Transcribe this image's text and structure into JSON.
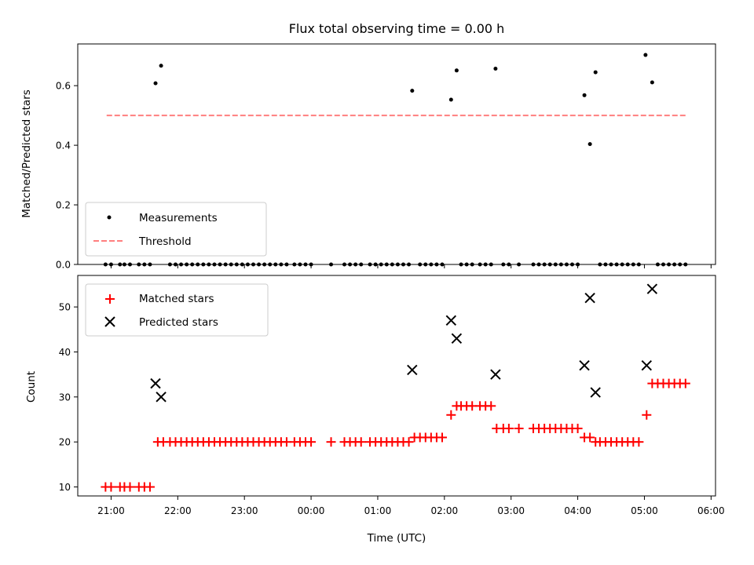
{
  "chart_data": [
    {
      "type": "scatter",
      "title": "Flux total observing time = 0.00 h",
      "xlabel": "",
      "ylabel": "Matched/Predicted stars",
      "xlim": [
        "20:30",
        "06:04"
      ],
      "ylim": [
        0,
        0.74
      ],
      "x_ticks": [
        "21:00",
        "22:00",
        "23:00",
        "00:00",
        "01:00",
        "02:00",
        "03:00",
        "04:00",
        "05:00",
        "06:00"
      ],
      "y_ticks": [
        "0.0",
        "0.2",
        "0.4",
        "0.6"
      ],
      "legend": {
        "position": "lower-left",
        "entries": [
          "Measurements",
          "Threshold"
        ]
      },
      "series": [
        {
          "name": "Measurements",
          "marker": "dot",
          "color": "#000000",
          "points": [
            {
              "x": "20:55",
              "y": 0
            },
            {
              "x": "21:00",
              "y": 0
            },
            {
              "x": "21:08",
              "y": 0
            },
            {
              "x": "21:12",
              "y": 0
            },
            {
              "x": "21:17",
              "y": 0
            },
            {
              "x": "21:25",
              "y": 0
            },
            {
              "x": "21:30",
              "y": 0
            },
            {
              "x": "21:35",
              "y": 0
            },
            {
              "x": "21:40",
              "y": 0.608
            },
            {
              "x": "21:45",
              "y": 0.667
            },
            {
              "x": "21:53",
              "y": 0
            },
            {
              "x": "21:58",
              "y": 0
            },
            {
              "x": "22:03",
              "y": 0
            },
            {
              "x": "22:08",
              "y": 0
            },
            {
              "x": "22:13",
              "y": 0
            },
            {
              "x": "22:18",
              "y": 0
            },
            {
              "x": "22:23",
              "y": 0
            },
            {
              "x": "22:28",
              "y": 0
            },
            {
              "x": "22:33",
              "y": 0
            },
            {
              "x": "22:38",
              "y": 0
            },
            {
              "x": "22:43",
              "y": 0
            },
            {
              "x": "22:48",
              "y": 0
            },
            {
              "x": "22:53",
              "y": 0
            },
            {
              "x": "22:58",
              "y": 0
            },
            {
              "x": "23:03",
              "y": 0
            },
            {
              "x": "23:08",
              "y": 0
            },
            {
              "x": "23:13",
              "y": 0
            },
            {
              "x": "23:18",
              "y": 0
            },
            {
              "x": "23:23",
              "y": 0
            },
            {
              "x": "23:28",
              "y": 0
            },
            {
              "x": "23:33",
              "y": 0
            },
            {
              "x": "23:38",
              "y": 0
            },
            {
              "x": "23:45",
              "y": 0
            },
            {
              "x": "23:50",
              "y": 0
            },
            {
              "x": "23:55",
              "y": 0
            },
            {
              "x": "00:00",
              "y": 0
            },
            {
              "x": "00:18",
              "y": 0
            },
            {
              "x": "00:30",
              "y": 0
            },
            {
              "x": "00:35",
              "y": 0
            },
            {
              "x": "00:40",
              "y": 0
            },
            {
              "x": "00:45",
              "y": 0
            },
            {
              "x": "00:53",
              "y": 0
            },
            {
              "x": "00:58",
              "y": 0
            },
            {
              "x": "01:03",
              "y": 0
            },
            {
              "x": "01:08",
              "y": 0
            },
            {
              "x": "01:13",
              "y": 0
            },
            {
              "x": "01:18",
              "y": 0
            },
            {
              "x": "01:23",
              "y": 0
            },
            {
              "x": "01:28",
              "y": 0
            },
            {
              "x": "01:31",
              "y": 0.583
            },
            {
              "x": "01:38",
              "y": 0
            },
            {
              "x": "01:43",
              "y": 0
            },
            {
              "x": "01:48",
              "y": 0
            },
            {
              "x": "01:53",
              "y": 0
            },
            {
              "x": "01:58",
              "y": 0
            },
            {
              "x": "02:06",
              "y": 0.553
            },
            {
              "x": "02:11",
              "y": 0.651
            },
            {
              "x": "02:15",
              "y": 0
            },
            {
              "x": "02:20",
              "y": 0
            },
            {
              "x": "02:25",
              "y": 0
            },
            {
              "x": "02:32",
              "y": 0
            },
            {
              "x": "02:37",
              "y": 0
            },
            {
              "x": "02:42",
              "y": 0
            },
            {
              "x": "02:46",
              "y": 0.657
            },
            {
              "x": "02:53",
              "y": 0
            },
            {
              "x": "02:58",
              "y": 0
            },
            {
              "x": "03:07",
              "y": 0
            },
            {
              "x": "03:20",
              "y": 0
            },
            {
              "x": "03:25",
              "y": 0
            },
            {
              "x": "03:30",
              "y": 0
            },
            {
              "x": "03:35",
              "y": 0
            },
            {
              "x": "03:40",
              "y": 0
            },
            {
              "x": "03:45",
              "y": 0
            },
            {
              "x": "03:50",
              "y": 0
            },
            {
              "x": "03:55",
              "y": 0
            },
            {
              "x": "04:00",
              "y": 0
            },
            {
              "x": "04:06",
              "y": 0.568
            },
            {
              "x": "04:11",
              "y": 0.404
            },
            {
              "x": "04:16",
              "y": 0.645
            },
            {
              "x": "04:20",
              "y": 0
            },
            {
              "x": "04:25",
              "y": 0
            },
            {
              "x": "04:30",
              "y": 0
            },
            {
              "x": "04:35",
              "y": 0
            },
            {
              "x": "04:40",
              "y": 0
            },
            {
              "x": "04:45",
              "y": 0
            },
            {
              "x": "04:50",
              "y": 0
            },
            {
              "x": "04:55",
              "y": 0
            },
            {
              "x": "05:01",
              "y": 0.703
            },
            {
              "x": "05:07",
              "y": 0.611
            },
            {
              "x": "05:12",
              "y": 0
            },
            {
              "x": "05:17",
              "y": 0
            },
            {
              "x": "05:22",
              "y": 0
            },
            {
              "x": "05:27",
              "y": 0
            },
            {
              "x": "05:32",
              "y": 0
            },
            {
              "x": "05:37",
              "y": 0
            }
          ]
        },
        {
          "name": "Threshold",
          "marker": "dashed-line",
          "color": "#ff7f7f",
          "points": [
            {
              "x": "20:56",
              "y": 0.5
            },
            {
              "x": "05:38",
              "y": 0.5
            }
          ]
        }
      ]
    },
    {
      "type": "scatter",
      "title": "",
      "xlabel": "Time (UTC)",
      "ylabel": "Count",
      "xlim": [
        "20:30",
        "06:04"
      ],
      "ylim": [
        8,
        57
      ],
      "x_ticks": [
        "21:00",
        "22:00",
        "23:00",
        "00:00",
        "01:00",
        "02:00",
        "03:00",
        "04:00",
        "05:00",
        "06:00"
      ],
      "y_ticks": [
        "10",
        "20",
        "30",
        "40",
        "50"
      ],
      "legend": {
        "position": "upper-left",
        "entries": [
          "Matched stars",
          "Predicted stars"
        ]
      },
      "series": [
        {
          "name": "Matched stars",
          "marker": "plus",
          "color": "#ff0000",
          "points": [
            {
              "x": "20:55",
              "y": 10
            },
            {
              "x": "21:00",
              "y": 10
            },
            {
              "x": "21:08",
              "y": 10
            },
            {
              "x": "21:12",
              "y": 10
            },
            {
              "x": "21:17",
              "y": 10
            },
            {
              "x": "21:25",
              "y": 10
            },
            {
              "x": "21:30",
              "y": 10
            },
            {
              "x": "21:35",
              "y": 10
            },
            {
              "x": "21:42",
              "y": 20
            },
            {
              "x": "21:47",
              "y": 20
            },
            {
              "x": "21:53",
              "y": 20
            },
            {
              "x": "21:58",
              "y": 20
            },
            {
              "x": "22:03",
              "y": 20
            },
            {
              "x": "22:08",
              "y": 20
            },
            {
              "x": "22:13",
              "y": 20
            },
            {
              "x": "22:18",
              "y": 20
            },
            {
              "x": "22:23",
              "y": 20
            },
            {
              "x": "22:28",
              "y": 20
            },
            {
              "x": "22:33",
              "y": 20
            },
            {
              "x": "22:38",
              "y": 20
            },
            {
              "x": "22:43",
              "y": 20
            },
            {
              "x": "22:48",
              "y": 20
            },
            {
              "x": "22:53",
              "y": 20
            },
            {
              "x": "22:58",
              "y": 20
            },
            {
              "x": "23:03",
              "y": 20
            },
            {
              "x": "23:08",
              "y": 20
            },
            {
              "x": "23:13",
              "y": 20
            },
            {
              "x": "23:18",
              "y": 20
            },
            {
              "x": "23:23",
              "y": 20
            },
            {
              "x": "23:28",
              "y": 20
            },
            {
              "x": "23:33",
              "y": 20
            },
            {
              "x": "23:38",
              "y": 20
            },
            {
              "x": "23:45",
              "y": 20
            },
            {
              "x": "23:50",
              "y": 20
            },
            {
              "x": "23:55",
              "y": 20
            },
            {
              "x": "00:00",
              "y": 20
            },
            {
              "x": "00:18",
              "y": 20
            },
            {
              "x": "00:30",
              "y": 20
            },
            {
              "x": "00:35",
              "y": 20
            },
            {
              "x": "00:40",
              "y": 20
            },
            {
              "x": "00:45",
              "y": 20
            },
            {
              "x": "00:53",
              "y": 20
            },
            {
              "x": "00:58",
              "y": 20
            },
            {
              "x": "01:03",
              "y": 20
            },
            {
              "x": "01:08",
              "y": 20
            },
            {
              "x": "01:13",
              "y": 20
            },
            {
              "x": "01:18",
              "y": 20
            },
            {
              "x": "01:23",
              "y": 20
            },
            {
              "x": "01:28",
              "y": 20
            },
            {
              "x": "01:33",
              "y": 21
            },
            {
              "x": "01:38",
              "y": 21
            },
            {
              "x": "01:43",
              "y": 21
            },
            {
              "x": "01:48",
              "y": 21
            },
            {
              "x": "01:53",
              "y": 21
            },
            {
              "x": "01:58",
              "y": 21
            },
            {
              "x": "02:06",
              "y": 26
            },
            {
              "x": "02:11",
              "y": 28
            },
            {
              "x": "02:15",
              "y": 28
            },
            {
              "x": "02:20",
              "y": 28
            },
            {
              "x": "02:25",
              "y": 28
            },
            {
              "x": "02:32",
              "y": 28
            },
            {
              "x": "02:37",
              "y": 28
            },
            {
              "x": "02:42",
              "y": 28
            },
            {
              "x": "02:47",
              "y": 23
            },
            {
              "x": "02:53",
              "y": 23
            },
            {
              "x": "02:58",
              "y": 23
            },
            {
              "x": "03:07",
              "y": 23
            },
            {
              "x": "03:20",
              "y": 23
            },
            {
              "x": "03:25",
              "y": 23
            },
            {
              "x": "03:30",
              "y": 23
            },
            {
              "x": "03:35",
              "y": 23
            },
            {
              "x": "03:40",
              "y": 23
            },
            {
              "x": "03:45",
              "y": 23
            },
            {
              "x": "03:50",
              "y": 23
            },
            {
              "x": "03:55",
              "y": 23
            },
            {
              "x": "04:00",
              "y": 23
            },
            {
              "x": "04:06",
              "y": 21
            },
            {
              "x": "04:11",
              "y": 21
            },
            {
              "x": "04:16",
              "y": 20
            },
            {
              "x": "04:20",
              "y": 20
            },
            {
              "x": "04:25",
              "y": 20
            },
            {
              "x": "04:30",
              "y": 20
            },
            {
              "x": "04:35",
              "y": 20
            },
            {
              "x": "04:40",
              "y": 20
            },
            {
              "x": "04:45",
              "y": 20
            },
            {
              "x": "04:50",
              "y": 20
            },
            {
              "x": "04:55",
              "y": 20
            },
            {
              "x": "05:02",
              "y": 26
            },
            {
              "x": "05:07",
              "y": 33
            },
            {
              "x": "05:12",
              "y": 33
            },
            {
              "x": "05:17",
              "y": 33
            },
            {
              "x": "05:22",
              "y": 33
            },
            {
              "x": "05:27",
              "y": 33
            },
            {
              "x": "05:32",
              "y": 33
            },
            {
              "x": "05:37",
              "y": 33
            }
          ]
        },
        {
          "name": "Predicted stars",
          "marker": "x",
          "color": "#000000",
          "points": [
            {
              "x": "21:40",
              "y": 33
            },
            {
              "x": "21:45",
              "y": 30
            },
            {
              "x": "01:31",
              "y": 36
            },
            {
              "x": "02:06",
              "y": 47
            },
            {
              "x": "02:11",
              "y": 43
            },
            {
              "x": "02:46",
              "y": 35
            },
            {
              "x": "04:06",
              "y": 37
            },
            {
              "x": "04:11",
              "y": 52
            },
            {
              "x": "04:16",
              "y": 31
            },
            {
              "x": "05:02",
              "y": 37
            },
            {
              "x": "05:07",
              "y": 54
            }
          ]
        }
      ]
    }
  ]
}
